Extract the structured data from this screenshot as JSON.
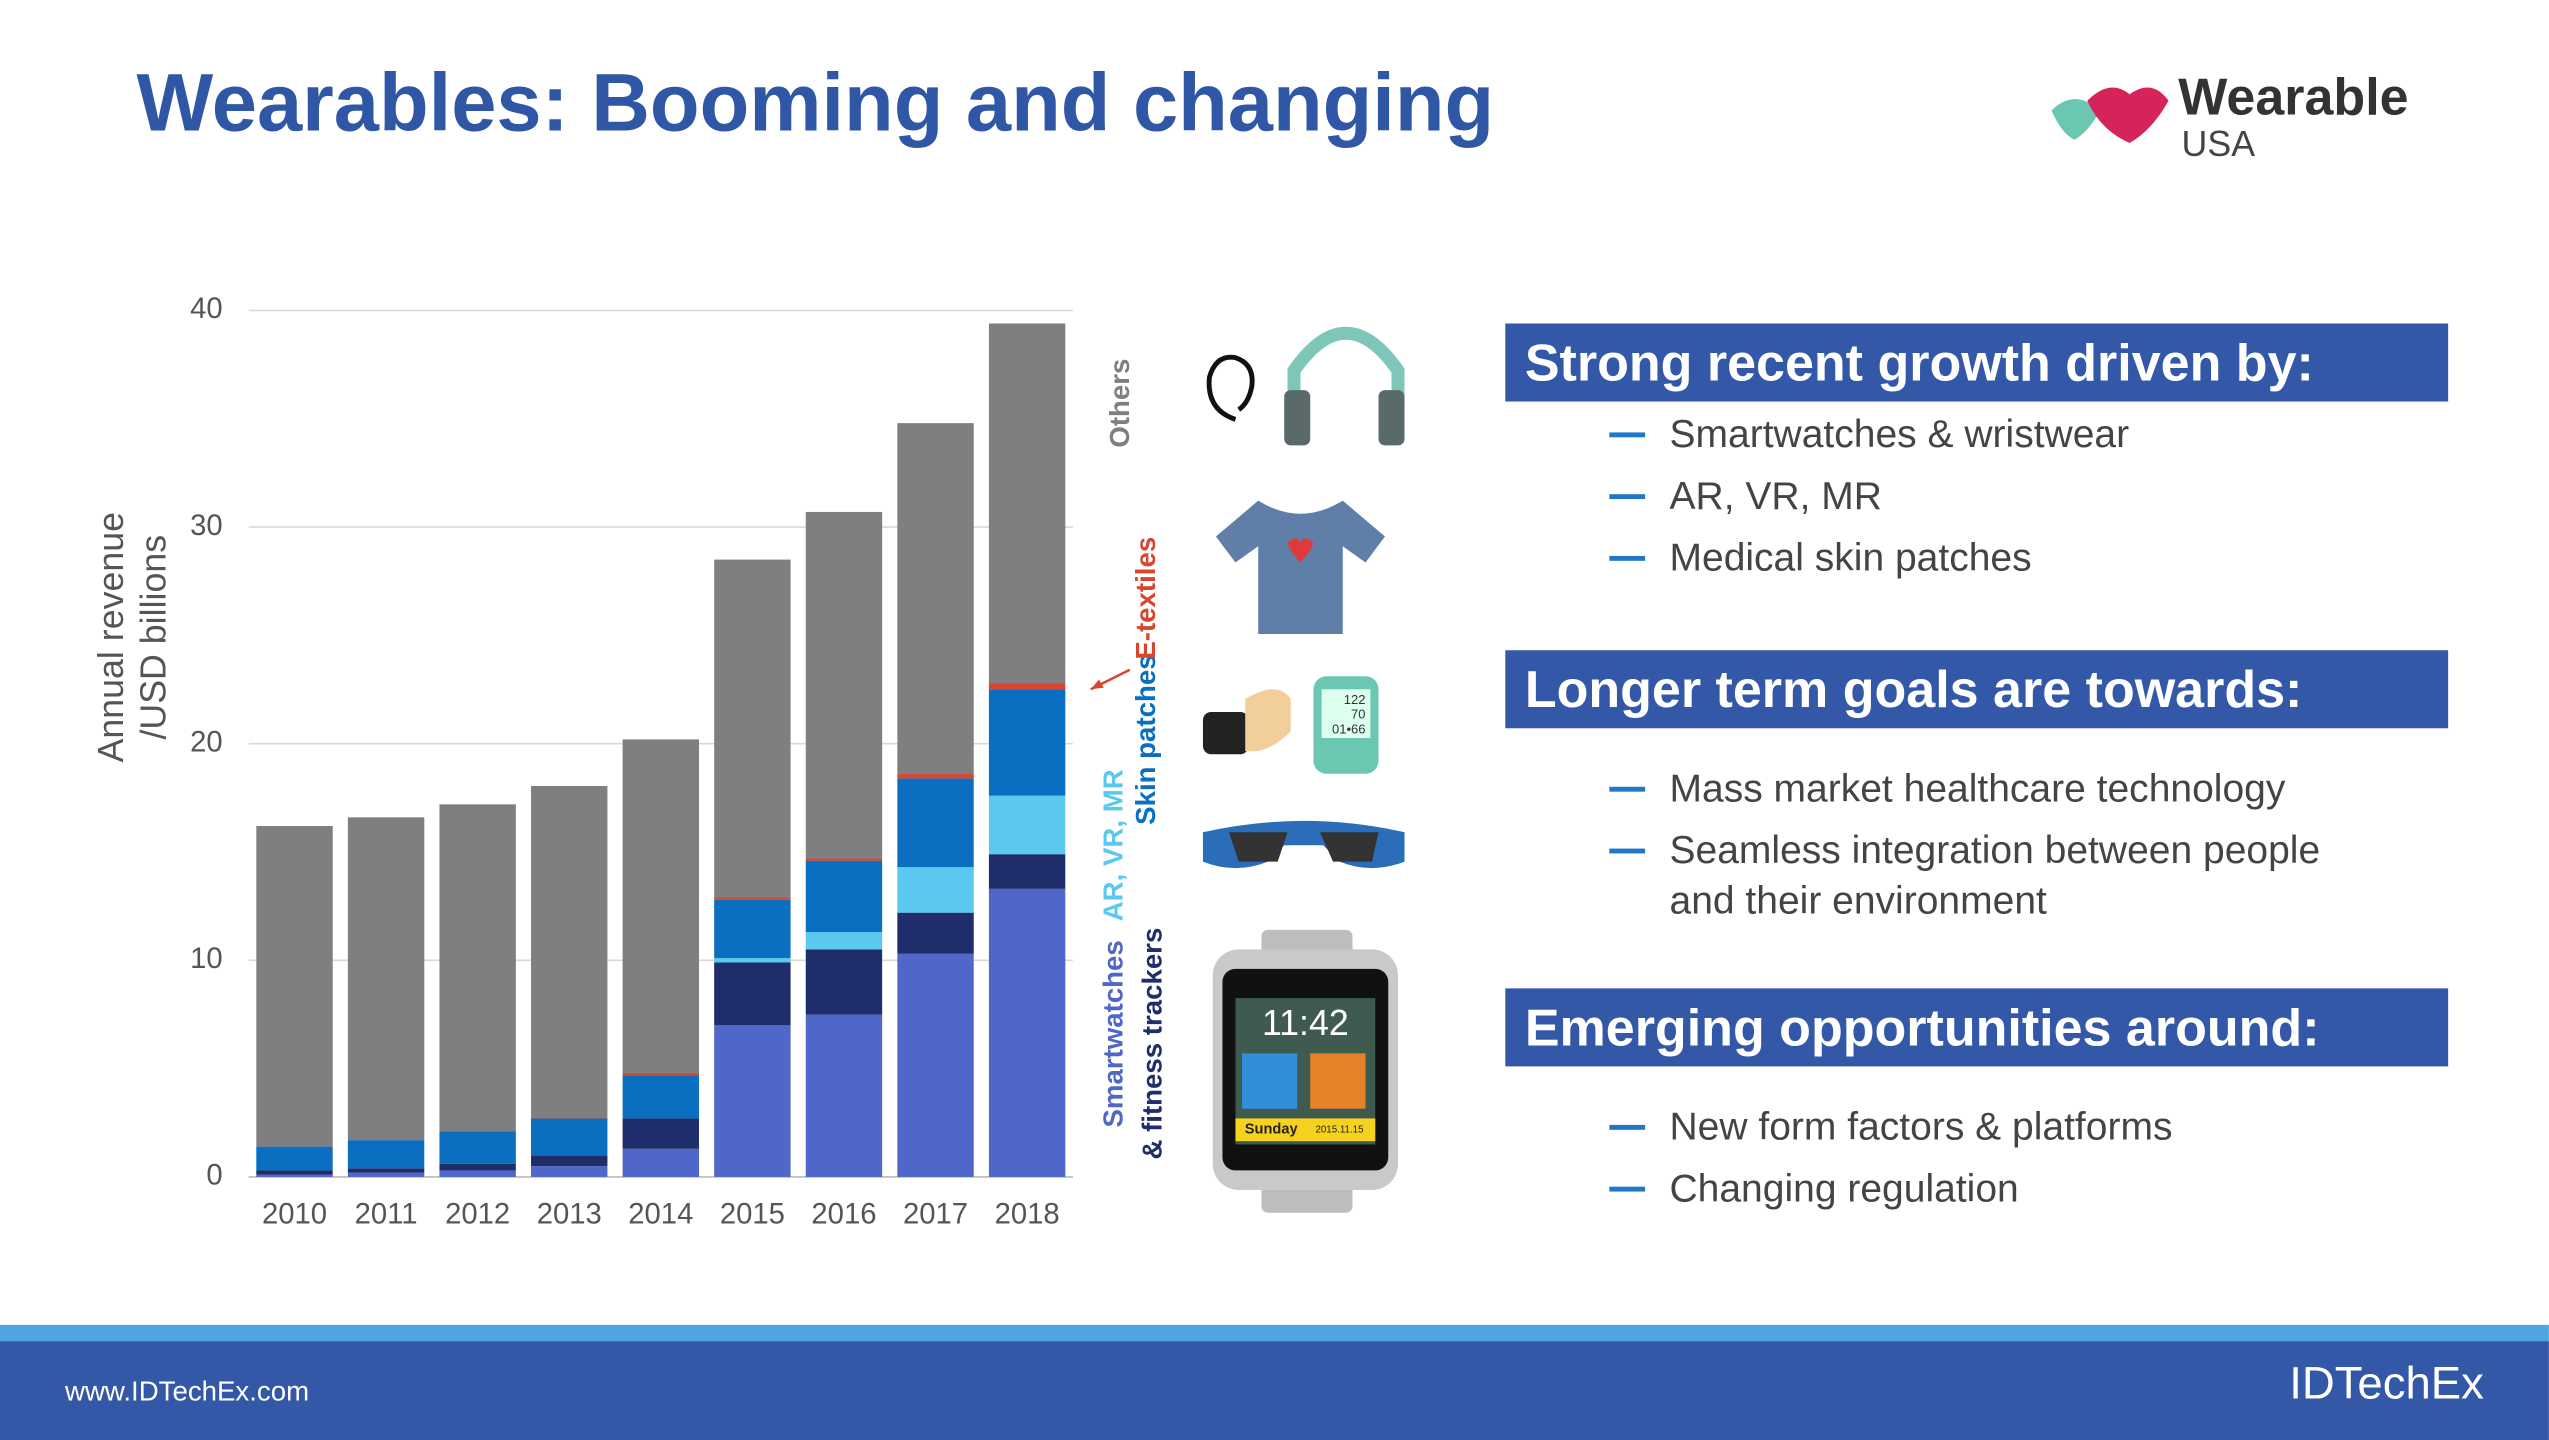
{
  "header": {
    "title": "Wearables: Booming and changing",
    "logo": {
      "name": "Wearable",
      "sub": "USA"
    }
  },
  "chart_data": {
    "type": "bar",
    "stacked": true,
    "ylabel": [
      "Annual revenue",
      "/USD billions"
    ],
    "categories": [
      "2010",
      "2011",
      "2012",
      "2013",
      "2014",
      "2015",
      "2016",
      "2017",
      "2018"
    ],
    "series": [
      {
        "name": "Smartwatches",
        "color": "#4f67c8",
        "values": [
          0.1,
          0.2,
          0.3,
          0.5,
          1.3,
          7.0,
          7.5,
          10.3,
          13.3
        ]
      },
      {
        "name": "& fitness trackers",
        "color": "#1f2d6b",
        "values": [
          0.2,
          0.2,
          0.3,
          0.5,
          1.4,
          2.9,
          3.0,
          1.9,
          1.6
        ]
      },
      {
        "name": "AR, VR, MR",
        "color": "#5bc8f0",
        "values": [
          0,
          0,
          0,
          0,
          0,
          0.2,
          0.8,
          2.1,
          2.7
        ]
      },
      {
        "name": "Skin patches",
        "color": "#0b6fc1",
        "values": [
          1.1,
          1.3,
          1.5,
          1.7,
          2.0,
          2.7,
          3.3,
          4.1,
          4.9
        ]
      },
      {
        "name": "E-textiles",
        "color": "#d9452f",
        "values": [
          0,
          0,
          0,
          0.05,
          0.1,
          0.1,
          0.1,
          0.2,
          0.3
        ]
      },
      {
        "name": "Others",
        "color": "#7f7f7f",
        "values": [
          14.8,
          14.9,
          15.1,
          15.3,
          15.4,
          15.6,
          16.0,
          16.2,
          16.6
        ]
      }
    ],
    "ylim": [
      0,
      40
    ],
    "yticks": [
      0,
      10,
      20,
      30,
      40
    ],
    "grid": true
  },
  "icons": {
    "device_readings": [
      "122",
      "70",
      "01•66"
    ],
    "watch": {
      "time": "11:42",
      "day": "Sunday",
      "date": "2015.11.15"
    }
  },
  "panel": {
    "sections": [
      {
        "heading": "Strong recent growth driven by:",
        "bullets": [
          "Smartwatches & wristwear",
          "AR, VR, MR",
          "Medical skin patches"
        ]
      },
      {
        "heading": "Longer term goals are towards:",
        "bullets": [
          "Mass market healthcare technology",
          "Seamless integration between people and their environment"
        ]
      },
      {
        "heading": "Emerging opportunities around:",
        "bullets": [
          "New form factors & platforms",
          "Changing regulation"
        ]
      }
    ]
  },
  "footer": {
    "url": "www.IDTechEx.com",
    "brand": "IDTechEx"
  }
}
